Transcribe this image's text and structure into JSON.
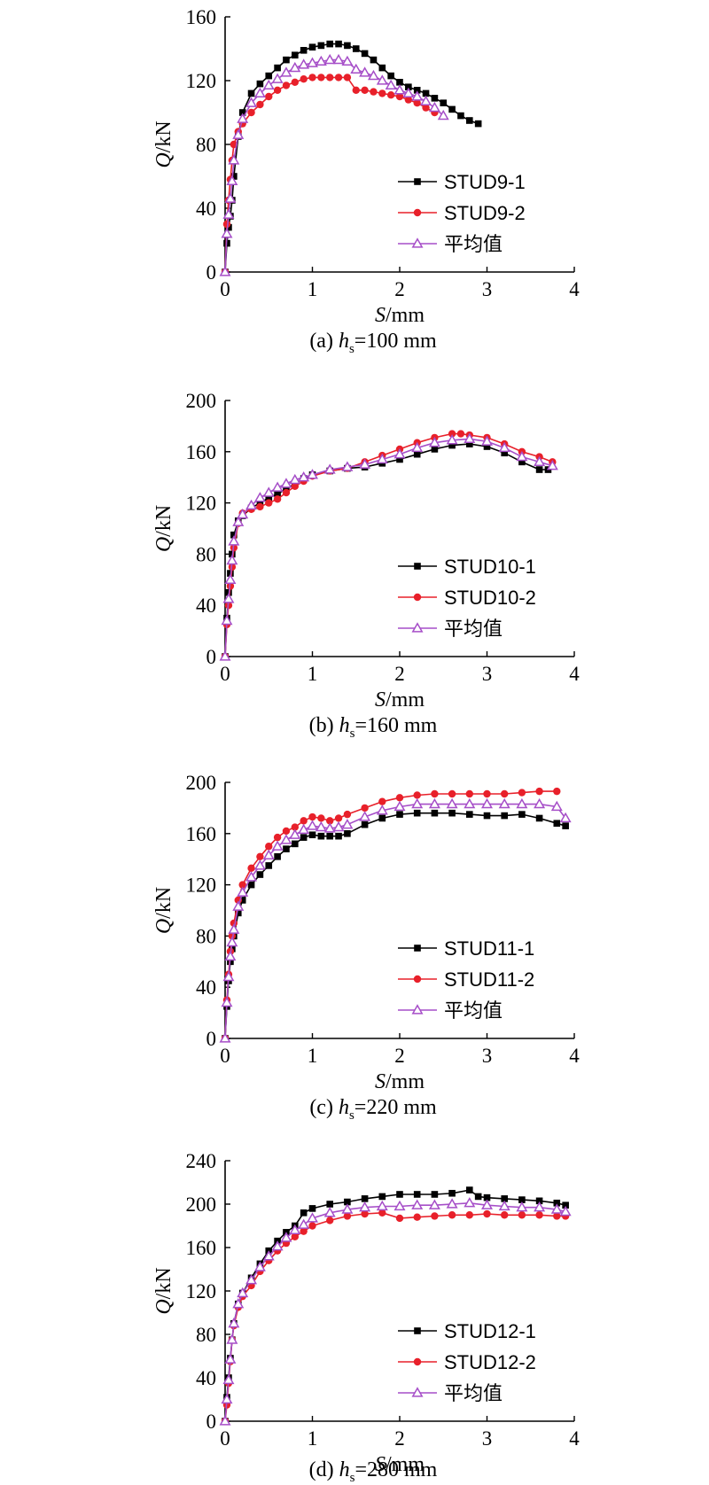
{
  "chart_data": [
    {
      "type": "line",
      "caption": {
        "prefix": "(a) ",
        "var": "h",
        "sub": "s",
        "suffix": "=100 mm"
      },
      "xlabel": {
        "var": "S",
        "unit": "/mm"
      },
      "ylabel": {
        "var": "Q",
        "unit": "/kN"
      },
      "xlim": [
        0,
        4
      ],
      "ylim": [
        0,
        160
      ],
      "xticks": [
        0,
        1,
        2,
        3,
        4
      ],
      "yticks": [
        0,
        40,
        80,
        120,
        160
      ],
      "legend_position": "center-right",
      "series": [
        {
          "name": "STUD9-1",
          "color": "#000000",
          "marker": "square",
          "x": [
            0,
            0.02,
            0.04,
            0.06,
            0.08,
            0.1,
            0.15,
            0.2,
            0.3,
            0.4,
            0.5,
            0.6,
            0.7,
            0.8,
            0.9,
            1.0,
            1.1,
            1.2,
            1.3,
            1.4,
            1.5,
            1.6,
            1.7,
            1.8,
            1.9,
            2.0,
            2.1,
            2.2,
            2.3,
            2.4,
            2.5,
            2.6,
            2.7,
            2.8,
            2.9
          ],
          "y": [
            0,
            18,
            28,
            35,
            45,
            60,
            85,
            100,
            112,
            118,
            123,
            128,
            133,
            136,
            139,
            141,
            142,
            143,
            143,
            142,
            140,
            137,
            133,
            128,
            123,
            119,
            116,
            114,
            112,
            109,
            106,
            102,
            98,
            95,
            93
          ]
        },
        {
          "name": "STUD9-2",
          "color": "#e8202a",
          "marker": "circle",
          "x": [
            0,
            0.02,
            0.04,
            0.06,
            0.08,
            0.1,
            0.15,
            0.2,
            0.3,
            0.4,
            0.5,
            0.6,
            0.7,
            0.8,
            0.9,
            1.0,
            1.1,
            1.2,
            1.3,
            1.4,
            1.5,
            1.6,
            1.7,
            1.8,
            1.9,
            2.0,
            2.1,
            2.2,
            2.3,
            2.4
          ],
          "y": [
            0,
            30,
            45,
            58,
            70,
            80,
            88,
            93,
            100,
            105,
            110,
            114,
            117,
            119,
            121,
            122,
            122,
            122,
            122,
            122,
            114,
            114,
            113,
            112,
            111,
            110,
            108,
            106,
            103,
            100
          ]
        },
        {
          "name": "平均值",
          "color": "#a64ec8",
          "marker": "triangle",
          "x": [
            0,
            0.02,
            0.04,
            0.06,
            0.08,
            0.1,
            0.15,
            0.2,
            0.3,
            0.4,
            0.5,
            0.6,
            0.7,
            0.8,
            0.9,
            1.0,
            1.1,
            1.2,
            1.3,
            1.4,
            1.5,
            1.6,
            1.7,
            1.8,
            1.9,
            2.0,
            2.1,
            2.2,
            2.3,
            2.4,
            2.5
          ],
          "y": [
            0,
            24,
            36,
            46,
            57,
            70,
            86,
            96,
            106,
            112,
            117,
            121,
            125,
            128,
            130,
            131,
            132,
            133,
            133,
            132,
            127,
            125,
            123,
            120,
            117,
            114,
            112,
            110,
            107,
            103,
            98
          ]
        }
      ]
    },
    {
      "type": "line",
      "caption": {
        "prefix": "(b) ",
        "var": "h",
        "sub": "s",
        "suffix": "=160 mm"
      },
      "xlabel": {
        "var": "S",
        "unit": "/mm"
      },
      "ylabel": {
        "var": "Q",
        "unit": "/kN"
      },
      "xlim": [
        0,
        4
      ],
      "ylim": [
        0,
        200
      ],
      "xticks": [
        0,
        1,
        2,
        3,
        4
      ],
      "yticks": [
        0,
        40,
        80,
        120,
        160,
        200
      ],
      "legend_position": "center-right",
      "series": [
        {
          "name": "STUD10-1",
          "color": "#000000",
          "marker": "square",
          "x": [
            0,
            0.02,
            0.04,
            0.06,
            0.08,
            0.1,
            0.15,
            0.2,
            0.3,
            0.4,
            0.5,
            0.6,
            0.7,
            0.8,
            0.9,
            1.0,
            1.2,
            1.4,
            1.6,
            1.8,
            2.0,
            2.2,
            2.4,
            2.6,
            2.8,
            3.0,
            3.2,
            3.4,
            3.6,
            3.7
          ],
          "y": [
            0,
            30,
            50,
            65,
            80,
            95,
            106,
            110,
            116,
            120,
            124,
            127,
            131,
            135,
            139,
            142,
            145,
            147,
            148,
            151,
            154,
            158,
            162,
            165,
            166,
            164,
            159,
            152,
            146,
            146
          ]
        },
        {
          "name": "STUD10-2",
          "color": "#e8202a",
          "marker": "circle",
          "x": [
            0,
            0.02,
            0.04,
            0.06,
            0.08,
            0.1,
            0.15,
            0.2,
            0.3,
            0.4,
            0.5,
            0.6,
            0.7,
            0.8,
            0.9,
            1.0,
            1.2,
            1.4,
            1.6,
            1.8,
            2.0,
            2.2,
            2.4,
            2.6,
            2.7,
            2.8,
            3.0,
            3.2,
            3.4,
            3.6,
            3.75
          ],
          "y": [
            0,
            25,
            40,
            55,
            70,
            85,
            104,
            112,
            115,
            117,
            120,
            123,
            128,
            133,
            137,
            141,
            145,
            147,
            152,
            157,
            162,
            167,
            171,
            174,
            174,
            173,
            171,
            166,
            160,
            156,
            152
          ]
        },
        {
          "name": "平均值",
          "color": "#a64ec8",
          "marker": "triangle",
          "x": [
            0,
            0.02,
            0.04,
            0.06,
            0.08,
            0.1,
            0.15,
            0.2,
            0.3,
            0.4,
            0.5,
            0.6,
            0.7,
            0.8,
            0.9,
            1.0,
            1.2,
            1.4,
            1.6,
            1.8,
            2.0,
            2.2,
            2.4,
            2.6,
            2.8,
            3.0,
            3.2,
            3.4,
            3.6,
            3.75
          ],
          "y": [
            0,
            28,
            45,
            60,
            75,
            90,
            105,
            111,
            118,
            124,
            128,
            132,
            135,
            138,
            140,
            142,
            146,
            148,
            150,
            154,
            158,
            163,
            167,
            169,
            170,
            168,
            163,
            156,
            152,
            149
          ]
        }
      ]
    },
    {
      "type": "line",
      "caption": {
        "prefix": "(c) ",
        "var": "h",
        "sub": "s",
        "suffix": "=220 mm"
      },
      "xlabel": {
        "var": "S",
        "unit": "/mm"
      },
      "ylabel": {
        "var": "Q",
        "unit": "/kN"
      },
      "xlim": [
        0,
        4
      ],
      "ylim": [
        0,
        200
      ],
      "xticks": [
        0,
        1,
        2,
        3,
        4
      ],
      "yticks": [
        0,
        40,
        80,
        120,
        160,
        200
      ],
      "legend_position": "center-right",
      "series": [
        {
          "name": "STUD11-1",
          "color": "#000000",
          "marker": "square",
          "x": [
            0,
            0.02,
            0.04,
            0.06,
            0.08,
            0.1,
            0.15,
            0.2,
            0.3,
            0.4,
            0.5,
            0.6,
            0.7,
            0.8,
            0.9,
            1.0,
            1.1,
            1.2,
            1.3,
            1.4,
            1.6,
            1.8,
            2.0,
            2.2,
            2.4,
            2.6,
            2.8,
            3.0,
            3.2,
            3.4,
            3.6,
            3.8,
            3.9
          ],
          "y": [
            0,
            25,
            45,
            60,
            70,
            80,
            98,
            108,
            120,
            128,
            135,
            142,
            148,
            152,
            157,
            159,
            158,
            158,
            158,
            160,
            167,
            172,
            175,
            176,
            176,
            176,
            175,
            174,
            174,
            175,
            172,
            168,
            166
          ]
        },
        {
          "name": "STUD11-2",
          "color": "#e8202a",
          "marker": "circle",
          "x": [
            0,
            0.02,
            0.04,
            0.06,
            0.08,
            0.1,
            0.15,
            0.2,
            0.3,
            0.4,
            0.5,
            0.6,
            0.7,
            0.8,
            0.9,
            1.0,
            1.1,
            1.2,
            1.3,
            1.4,
            1.6,
            1.8,
            2.0,
            2.2,
            2.4,
            2.6,
            2.8,
            3.0,
            3.2,
            3.4,
            3.6,
            3.8
          ],
          "y": [
            0,
            30,
            50,
            68,
            80,
            90,
            108,
            120,
            133,
            142,
            150,
            157,
            162,
            165,
            170,
            173,
            172,
            170,
            172,
            175,
            180,
            185,
            188,
            190,
            191,
            191,
            191,
            191,
            191,
            192,
            193,
            193
          ]
        },
        {
          "name": "平均值",
          "color": "#a64ec8",
          "marker": "triangle",
          "x": [
            0,
            0.02,
            0.04,
            0.06,
            0.08,
            0.1,
            0.15,
            0.2,
            0.3,
            0.4,
            0.5,
            0.6,
            0.7,
            0.8,
            0.9,
            1.0,
            1.1,
            1.2,
            1.3,
            1.4,
            1.6,
            1.8,
            2.0,
            2.2,
            2.4,
            2.6,
            2.8,
            3.0,
            3.2,
            3.4,
            3.6,
            3.8,
            3.9
          ],
          "y": [
            0,
            28,
            48,
            64,
            75,
            85,
            103,
            114,
            126,
            135,
            143,
            150,
            155,
            159,
            163,
            166,
            165,
            164,
            165,
            167,
            173,
            178,
            181,
            183,
            183,
            183,
            183,
            183,
            183,
            183,
            183,
            181,
            172
          ]
        }
      ]
    },
    {
      "type": "line",
      "caption": {
        "prefix": "(d) ",
        "var": "h",
        "sub": "s",
        "suffix": "=280 mm"
      },
      "xlabel": {
        "var": "S",
        "unit": "/mm"
      },
      "ylabel": {
        "var": "Q",
        "unit": "/kN"
      },
      "xlim": [
        0,
        4
      ],
      "ylim": [
        0,
        240
      ],
      "xticks": [
        0,
        1,
        2,
        3,
        4
      ],
      "yticks": [
        0,
        40,
        80,
        120,
        160,
        200,
        240
      ],
      "legend_position": "center-right",
      "series": [
        {
          "name": "STUD12-1",
          "color": "#000000",
          "marker": "square",
          "x": [
            0,
            0.02,
            0.04,
            0.06,
            0.08,
            0.1,
            0.15,
            0.2,
            0.3,
            0.4,
            0.5,
            0.6,
            0.7,
            0.8,
            0.9,
            1.0,
            1.2,
            1.4,
            1.6,
            1.8,
            2.0,
            2.2,
            2.4,
            2.6,
            2.8,
            2.9,
            3.0,
            3.2,
            3.4,
            3.6,
            3.8,
            3.9
          ],
          "y": [
            0,
            22,
            40,
            58,
            75,
            90,
            108,
            118,
            132,
            145,
            157,
            166,
            174,
            180,
            192,
            196,
            200,
            202,
            205,
            207,
            209,
            209,
            209,
            210,
            213,
            207,
            206,
            205,
            204,
            203,
            201,
            199
          ]
        },
        {
          "name": "STUD12-2",
          "color": "#e8202a",
          "marker": "circle",
          "x": [
            0,
            0.02,
            0.04,
            0.06,
            0.08,
            0.1,
            0.15,
            0.2,
            0.3,
            0.4,
            0.5,
            0.6,
            0.7,
            0.8,
            0.9,
            1.0,
            1.2,
            1.4,
            1.6,
            1.8,
            2.0,
            2.2,
            2.4,
            2.6,
            2.8,
            3.0,
            3.2,
            3.4,
            3.6,
            3.8,
            3.9
          ],
          "y": [
            0,
            15,
            35,
            55,
            75,
            88,
            105,
            115,
            125,
            138,
            148,
            157,
            164,
            170,
            175,
            180,
            185,
            189,
            191,
            192,
            187,
            188,
            189,
            190,
            190,
            191,
            190,
            190,
            190,
            189,
            189
          ]
        },
        {
          "name": "平均值",
          "color": "#a64ec8",
          "marker": "triangle",
          "x": [
            0,
            0.02,
            0.04,
            0.06,
            0.08,
            0.1,
            0.15,
            0.2,
            0.3,
            0.4,
            0.5,
            0.6,
            0.7,
            0.8,
            0.9,
            1.0,
            1.2,
            1.4,
            1.6,
            1.8,
            2.0,
            2.2,
            2.4,
            2.6,
            2.8,
            3.0,
            3.2,
            3.4,
            3.6,
            3.8,
            3.9
          ],
          "y": [
            0,
            20,
            38,
            57,
            75,
            90,
            108,
            118,
            130,
            142,
            152,
            161,
            169,
            176,
            181,
            187,
            192,
            195,
            197,
            198,
            198,
            199,
            199,
            200,
            201,
            199,
            198,
            197,
            197,
            195,
            193
          ]
        }
      ]
    }
  ]
}
